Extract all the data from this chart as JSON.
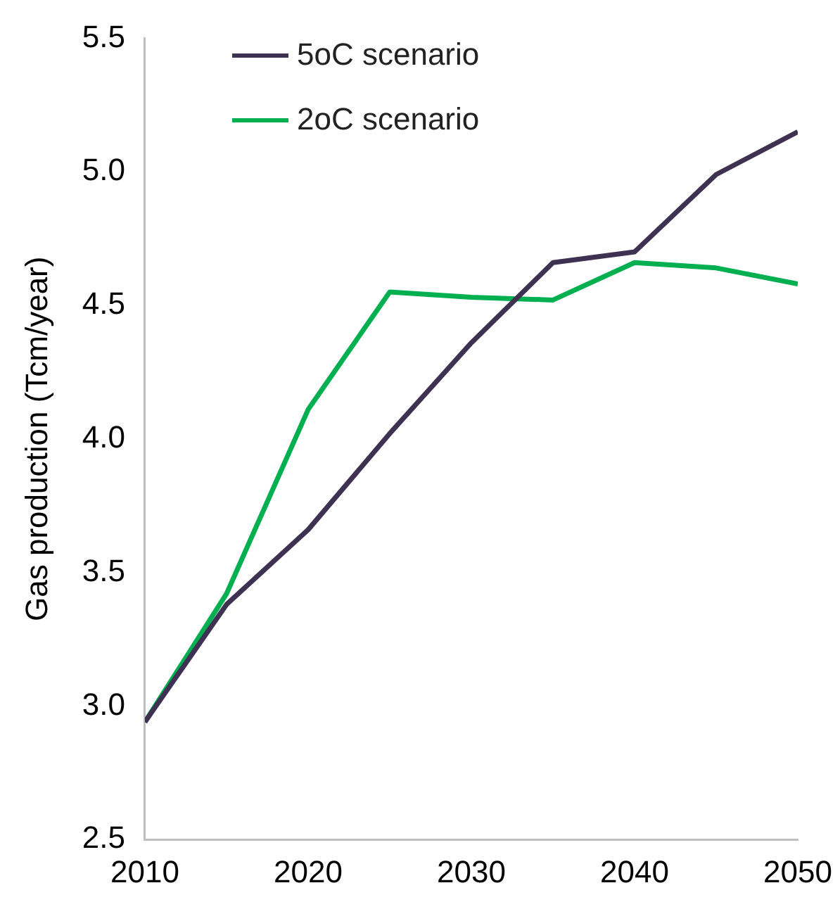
{
  "chart_data": {
    "type": "line",
    "ylabel": "Gas production (Tcm/year)",
    "x": [
      2010,
      2015,
      2020,
      2025,
      2030,
      2035,
      2040,
      2045,
      2050
    ],
    "series": [
      {
        "name": "5oC scenario",
        "color": "#3f3151",
        "values": [
          2.94,
          3.38,
          3.66,
          4.02,
          4.36,
          4.66,
          4.7,
          4.99,
          5.15
        ]
      },
      {
        "name": "2oC scenario",
        "color": "#00b050",
        "values": [
          2.94,
          3.42,
          4.11,
          4.55,
          4.53,
          4.52,
          4.66,
          4.64,
          4.58
        ]
      }
    ],
    "xlim": [
      2010,
      2050
    ],
    "xticks": [
      2010,
      2020,
      2030,
      2040,
      2050
    ],
    "ylim": [
      2.5,
      5.5
    ],
    "yticks": [
      2.5,
      {
        "value": 3,
        "label": "3.0"
      },
      3.5,
      {
        "value": 4,
        "label": "4.0"
      },
      4.5,
      {
        "value": 5,
        "label": "5.0"
      },
      5.5
    ],
    "grid": false,
    "legend": "top left",
    "marker": "none",
    "line_style": "solid"
  }
}
